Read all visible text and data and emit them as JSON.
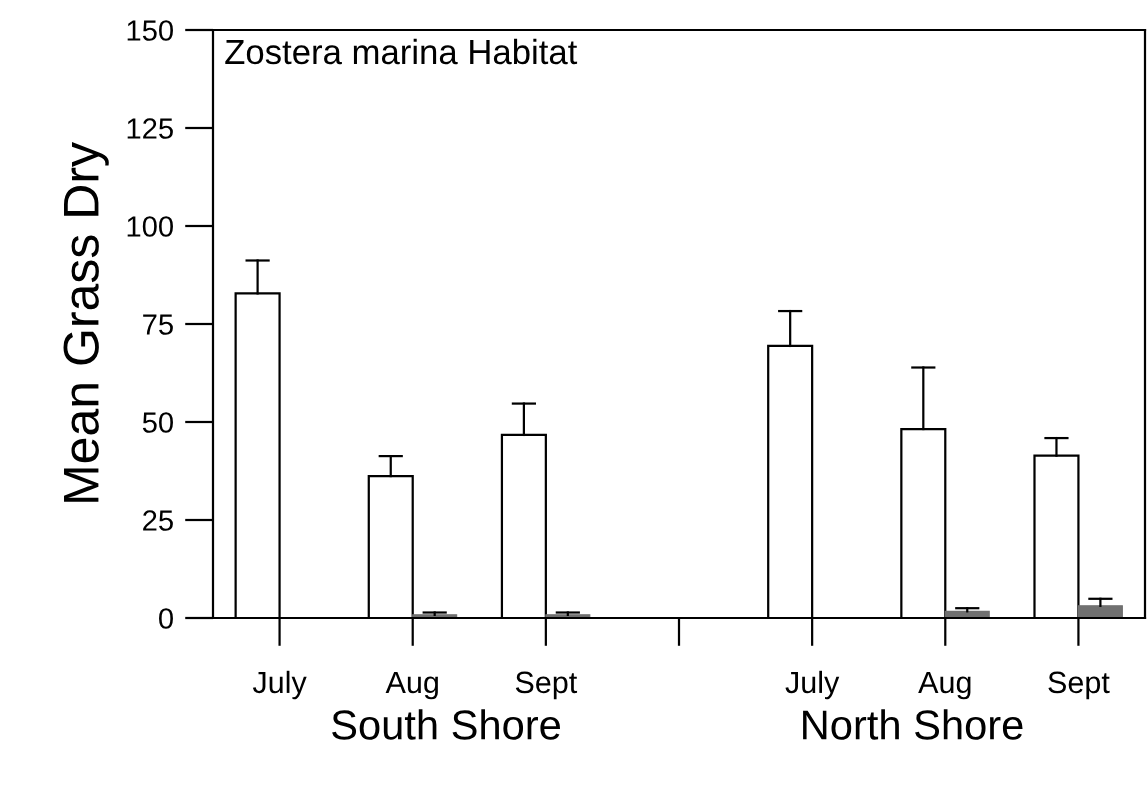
{
  "chart_data": {
    "type": "bar",
    "title": "Zostera marina Habitat",
    "ylabel": "Mean Grass Dry",
    "categories": [
      "July",
      "Aug",
      "Sept",
      null,
      "July",
      "Aug",
      "Sept"
    ],
    "series": [
      {
        "color": "#ffffff",
        "values": [
          82.8,
          36.2,
          46.7,
          null,
          69.4,
          48.2,
          41.4
        ],
        "errors": [
          [
            82.8,
            91.2
          ],
          [
            36.2,
            41.3
          ],
          [
            46.7,
            54.7
          ],
          null,
          [
            69.4,
            78.3
          ],
          [
            48.2,
            63.9
          ],
          [
            41.4,
            45.9
          ]
        ]
      },
      {
        "color": "#707070",
        "values": [
          null,
          0.8,
          0.8,
          null,
          null,
          1.7,
          3.1
        ],
        "errors": [
          null,
          [
            0.8,
            1.4
          ],
          [
            0.8,
            1.4
          ],
          null,
          null,
          [
            1.7,
            2.5
          ],
          [
            3.1,
            4.9
          ]
        ]
      }
    ],
    "annotations": [
      "South Shore",
      "North Shore"
    ],
    "ylim": [
      0,
      150
    ],
    "yticks": [
      0,
      25,
      50,
      75,
      100,
      125,
      150
    ],
    "grid": false,
    "legend": false
  }
}
